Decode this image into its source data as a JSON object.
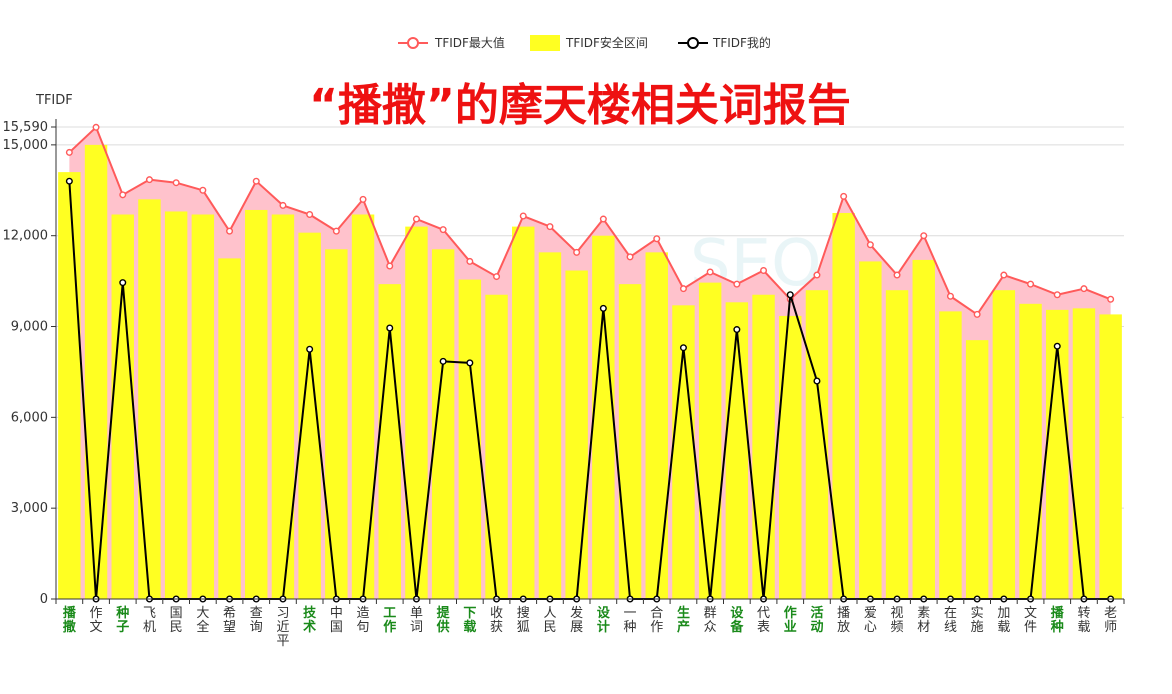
{
  "chart_data": {
    "type": "bar",
    "title": "“播撒”的摩天楼相关词报告",
    "ylabel": "TFIDF",
    "ylim": [
      0,
      15590
    ],
    "yticks": [
      0,
      3000,
      6000,
      9000,
      12000,
      15000,
      15590
    ],
    "ytick_labels": [
      "0",
      "3,000",
      "6,000",
      "9,000",
      "12,000",
      "15,000",
      "15,590"
    ],
    "legend_position": "top-center",
    "watermark": "SEO",
    "categories": [
      "播撒",
      "作文",
      "种子",
      "飞机",
      "国民",
      "大全",
      "希望",
      "查询",
      "习近平",
      "技术",
      "中国",
      "造句",
      "工作",
      "单词",
      "提供",
      "下载",
      "收获",
      "搜狐",
      "人民",
      "发展",
      "设计",
      "一种",
      "合作",
      "生产",
      "群众",
      "设备",
      "代表",
      "作业",
      "活动",
      "播放",
      "爱心",
      "视频",
      "素材",
      "在线",
      "实施",
      "加载",
      "文件",
      "播种",
      "转载",
      "老师"
    ],
    "highlighted": [
      true,
      false,
      true,
      false,
      false,
      false,
      false,
      false,
      false,
      true,
      false,
      false,
      true,
      false,
      true,
      true,
      false,
      false,
      false,
      false,
      true,
      false,
      false,
      true,
      false,
      true,
      false,
      true,
      true,
      false,
      false,
      false,
      false,
      false,
      false,
      false,
      false,
      true,
      false,
      false
    ],
    "colors": {
      "max_line": "#ff5a5a",
      "band_fill": "#ffc2cc",
      "safe_bar": "#ffff22",
      "mine_line": "#000000",
      "highlight_label": "#1a8a1a",
      "normal_label": "#333333",
      "title": "#ee1111"
    },
    "series": [
      {
        "name": "TFIDF最大值",
        "kind": "line",
        "values": [
          14750,
          15580,
          13350,
          13850,
          13750,
          13500,
          12150,
          13800,
          13000,
          12700,
          12150,
          13200,
          11000,
          12550,
          12200,
          11150,
          10650,
          12650,
          12300,
          11450,
          12550,
          11300,
          11900,
          10250,
          10800,
          10400,
          10850,
          9900,
          10700,
          13300,
          11700,
          10700,
          12000,
          10000,
          9400,
          10700,
          10400,
          10050,
          10250,
          9900
        ]
      },
      {
        "name": "TFIDF安全区间",
        "kind": "bar",
        "values": [
          14100,
          15000,
          12700,
          13200,
          12800,
          12700,
          11250,
          12850,
          12700,
          12100,
          11550,
          12700,
          10400,
          12300,
          11550,
          10550,
          10050,
          12300,
          11450,
          10850,
          12000,
          10400,
          11450,
          9700,
          10450,
          9800,
          10050,
          9350,
          10200,
          12750,
          11150,
          10200,
          11200,
          9500,
          8550,
          10200,
          9750,
          9550,
          9600,
          9400
        ]
      },
      {
        "name": "TFIDF我的",
        "kind": "line",
        "values": [
          13800,
          0,
          10450,
          0,
          0,
          0,
          0,
          0,
          0,
          8250,
          0,
          0,
          8950,
          0,
          7850,
          7800,
          0,
          0,
          0,
          0,
          9600,
          0,
          0,
          8300,
          0,
          8900,
          0,
          10050,
          7200,
          0,
          0,
          0,
          0,
          0,
          0,
          0,
          0,
          8350,
          0,
          0
        ]
      }
    ]
  }
}
